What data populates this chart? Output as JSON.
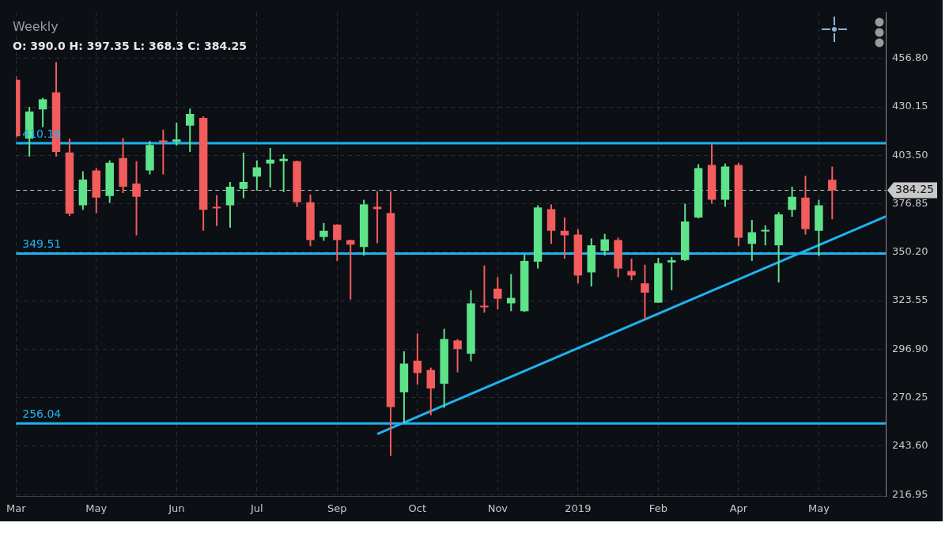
{
  "chart_data": {
    "type": "candlestick",
    "title": "Weekly",
    "subtitle": "O: 390.0 H: 397.35 L: 368.3 C: 384.25",
    "categories": [
      "Mar",
      null,
      null,
      null,
      null,
      null,
      "May",
      null,
      null,
      null,
      null,
      null,
      "Jun",
      null,
      null,
      null,
      null,
      null,
      "Jul",
      null,
      null,
      null,
      null,
      null,
      "Sep",
      null,
      null,
      null,
      null,
      null,
      "Oct",
      null,
      null,
      null,
      null,
      null,
      "Nov",
      null,
      null,
      null,
      null,
      null,
      "2019",
      null,
      null,
      null,
      null,
      null,
      "Feb",
      null,
      null,
      null,
      null,
      null,
      "Apr",
      null,
      null,
      null,
      null,
      null,
      "May",
      null,
      null,
      null,
      null,
      null
    ],
    "ohlc": [
      [
        445.0,
        447.0,
        413.0,
        414.0
      ],
      [
        412.6,
        430.0,
        402.8,
        427.5
      ],
      [
        428.7,
        435.1,
        419.0,
        434.3
      ],
      [
        438.1,
        454.7,
        402.8,
        405.4
      ],
      [
        405.0,
        412.6,
        370.1,
        371.4
      ],
      [
        376.0,
        394.7,
        373.5,
        390.1
      ],
      [
        395.2,
        396.4,
        371.8,
        380.3
      ],
      [
        381.1,
        400.7,
        377.3,
        399.4
      ],
      [
        402.0,
        413.0,
        382.8,
        386.2
      ],
      [
        388.0,
        400.3,
        359.5,
        380.7
      ],
      [
        395.2,
        411.3,
        393.0,
        409.2
      ],
      [
        411.7,
        417.7,
        393.0,
        410.9
      ],
      [
        410.9,
        421.5,
        408.8,
        412.2
      ],
      [
        419.8,
        429.2,
        405.4,
        426.2
      ],
      [
        424.1,
        424.9,
        362.0,
        373.5
      ],
      [
        375.2,
        381.6,
        364.6,
        374.3
      ],
      [
        376.0,
        388.8,
        363.7,
        386.2
      ],
      [
        385.0,
        404.9,
        379.9,
        388.8
      ],
      [
        391.8,
        400.7,
        384.1,
        396.9
      ],
      [
        399.0,
        407.5,
        385.8,
        401.1
      ],
      [
        400.3,
        404.1,
        383.3,
        401.6
      ],
      [
        400.3,
        400.5,
        375.2,
        377.7
      ],
      [
        377.7,
        382.0,
        353.5,
        356.9
      ],
      [
        358.6,
        366.3,
        356.5,
        362.0
      ],
      [
        365.4,
        365.6,
        345.4,
        356.9
      ],
      [
        356.9,
        357.1,
        324.2,
        354.4
      ],
      [
        353.1,
        379.0,
        348.4,
        376.5
      ],
      [
        375.2,
        383.7,
        355.2,
        373.9
      ],
      [
        371.8,
        383.7,
        238.3,
        265.1
      ],
      [
        273.2,
        295.7,
        256.2,
        289.0
      ],
      [
        290.6,
        305.5,
        277.5,
        283.8
      ],
      [
        285.5,
        286.8,
        260.5,
        275.3
      ],
      [
        277.9,
        308.1,
        264.7,
        302.5
      ],
      [
        301.7,
        302.5,
        284.2,
        297.0
      ],
      [
        294.4,
        329.3,
        290.2,
        322.1
      ],
      [
        320.8,
        342.9,
        317.0,
        320.0
      ],
      [
        330.2,
        336.5,
        318.7,
        324.6
      ],
      [
        322.1,
        338.2,
        317.8,
        325.1
      ],
      [
        317.8,
        348.8,
        317.4,
        345.4
      ],
      [
        345.0,
        376.0,
        341.2,
        374.8
      ],
      [
        373.9,
        376.5,
        354.8,
        362.0
      ],
      [
        362.0,
        369.3,
        346.7,
        359.5
      ],
      [
        359.9,
        362.9,
        333.1,
        337.4
      ],
      [
        339.1,
        357.8,
        331.4,
        354.0
      ],
      [
        351.0,
        360.3,
        348.4,
        357.3
      ],
      [
        356.9,
        358.2,
        336.5,
        341.2
      ],
      [
        339.9,
        346.7,
        334.8,
        337.4
      ],
      [
        333.1,
        343.3,
        313.1,
        328.0
      ],
      [
        322.5,
        347.1,
        322.3,
        344.2
      ],
      [
        344.6,
        347.6,
        329.3,
        345.8
      ],
      [
        345.9,
        376.9,
        345.4,
        367.1
      ],
      [
        369.3,
        398.6,
        368.8,
        396.4
      ],
      [
        398.2,
        409.6,
        376.9,
        379.0
      ],
      [
        379.0,
        399.0,
        375.2,
        397.3
      ],
      [
        398.2,
        399.4,
        353.5,
        358.2
      ],
      [
        354.8,
        368.0,
        345.4,
        361.2
      ],
      [
        361.6,
        365.0,
        354.0,
        362.5
      ],
      [
        354.0,
        372.2,
        333.6,
        371.0
      ],
      [
        373.5,
        386.2,
        369.7,
        380.7
      ],
      [
        380.3,
        392.2,
        359.9,
        362.9
      ],
      [
        362.0,
        379.0,
        348.0,
        376.0
      ],
      [
        390.0,
        397.35,
        368.3,
        384.25
      ],
      null,
      null,
      null,
      null
    ],
    "colors": [
      "#f25c5c",
      "#5ee38a",
      "#5ee38a",
      "#f25c5c",
      "#f25c5c",
      "#5ee38a",
      "#f25c5c",
      "#5ee38a",
      "#f25c5c",
      "#f25c5c",
      "#5ee38a",
      "#f25c5c",
      "#5ee38a",
      "#5ee38a",
      "#f25c5c",
      "#f25c5c",
      "#5ee38a",
      "#5ee38a",
      "#5ee38a",
      "#5ee38a",
      "#5ee38a",
      "#f25c5c",
      "#f25c5c",
      "#5ee38a",
      "#f25c5c",
      "#f25c5c",
      "#5ee38a",
      "#f25c5c",
      "#f25c5c",
      "#5ee38a",
      "#f25c5c",
      "#f25c5c",
      "#5ee38a",
      "#f25c5c",
      "#5ee38a",
      "#f25c5c",
      "#f25c5c",
      "#5ee38a",
      "#5ee38a",
      "#5ee38a",
      "#f25c5c",
      "#f25c5c",
      "#f25c5c",
      "#5ee38a",
      "#5ee38a",
      "#f25c5c",
      "#f25c5c",
      "#f25c5c",
      "#5ee38a",
      "#5ee38a",
      "#5ee38a",
      "#5ee38a",
      "#f25c5c",
      "#5ee38a",
      "#f25c5c",
      "#5ee38a",
      "#5ee38a",
      "#5ee38a",
      "#5ee38a",
      "#f25c5c",
      "#5ee38a",
      "#f25c5c",
      null,
      null,
      null,
      null
    ],
    "series": [
      {
        "type": "line",
        "color": "#1fb3ef",
        "values": [
          null,
          null,
          null,
          null,
          null,
          null,
          null,
          null,
          null,
          null,
          null,
          null,
          null,
          null,
          null,
          null,
          null,
          null,
          null,
          null,
          null,
          null,
          null,
          null,
          null,
          null,
          null,
          250.3,
          null,
          null,
          null,
          null,
          null,
          null,
          null,
          null,
          null,
          null,
          null,
          null,
          null,
          null,
          null,
          null,
          null,
          null,
          null,
          null,
          null,
          null,
          null,
          null,
          null,
          null,
          null,
          null,
          null,
          null,
          null,
          null,
          null,
          null,
          null,
          null,
          null,
          369.9
        ]
      }
    ],
    "ref_lines": [
      {
        "axis": "y",
        "value": 410.16,
        "label": "410.16",
        "color": "#1fb3ef"
      },
      {
        "axis": "y",
        "value": 349.51,
        "label": "349.51",
        "color": "#1fb3ef"
      },
      {
        "axis": "y",
        "value": 256.04,
        "label": "256.04",
        "color": "#1fb3ef"
      },
      {
        "axis": "y",
        "value": 384.25,
        "label": "384.25",
        "color": "#c8c8c8",
        "line_style": "dashed"
      }
    ],
    "ylim": [
      216.0,
      482.0
    ],
    "yticks": [
      216.95,
      {
        "value": 243.6,
        "label": "243.60"
      },
      270.25,
      {
        "value": 296.9,
        "label": "296.90"
      },
      323.55,
      {
        "value": 350.2,
        "label": "350.20"
      },
      376.85,
      {
        "value": 403.5,
        "label": "403.50"
      },
      430.15,
      {
        "value": 456.8,
        "label": "456.80"
      }
    ],
    "grid": true,
    "legend": false
  }
}
